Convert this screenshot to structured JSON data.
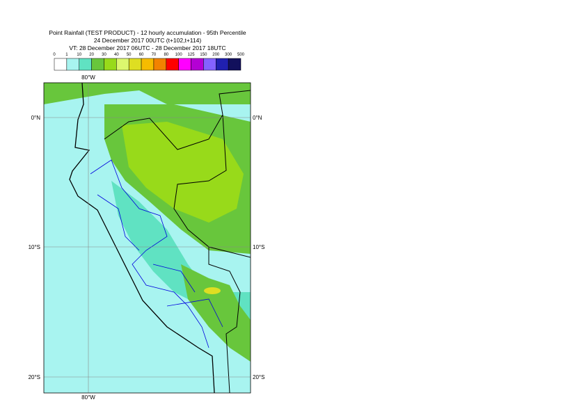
{
  "header": {
    "lines": [
      "Point Rainfall (TEST PRODUCT) - 12 hourly accumulation - 95th Percentile",
      "24 December 2017 00UTC (t+102,t+114)",
      "VT: 28 December 2017 06UTC - 28 December 2017 18UTC"
    ]
  },
  "legend": {
    "labels": [
      "0",
      "1",
      "10",
      "20",
      "30",
      "40",
      "50",
      "60",
      "70",
      "80",
      "100",
      "125",
      "150",
      "200",
      "300",
      "500"
    ],
    "colors": [
      "#ffffff",
      "#a8f4f0",
      "#60e2c2",
      "#68c63c",
      "#98da1a",
      "#dcf76e",
      "#dede22",
      "#f6bc00",
      "#f28200",
      "#ff0000",
      "#ff00ff",
      "#b400d4",
      "#8462ff",
      "#2020b0",
      "#12105c"
    ]
  },
  "map": {
    "lon_labels": [
      "80°W",
      "80°W"
    ],
    "lat_labels": [
      "0°N",
      "10°S",
      "20°S"
    ]
  }
}
